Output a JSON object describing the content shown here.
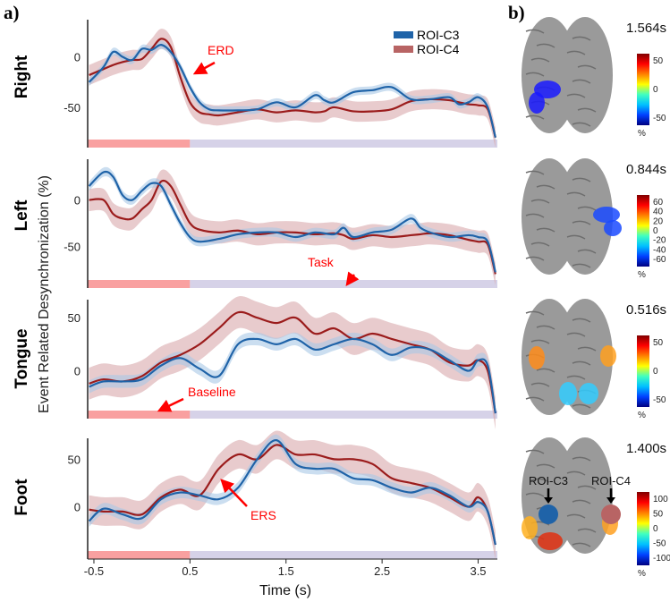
{
  "panel_labels": {
    "a": "a)",
    "b": "b)"
  },
  "ylabel": "Event Related Desynchronization (%)",
  "xlabel": "Time (s)",
  "legend": [
    {
      "name": "ROI-C3",
      "color": "#1f63a8"
    },
    {
      "name": "ROI-C4",
      "color": "#b86464"
    }
  ],
  "annotations": {
    "erd": "ERD",
    "task": "Task",
    "baseline": "Baseline",
    "ers": "ERS"
  },
  "chart_data": {
    "type": "line",
    "xlabel": "Time (s)",
    "ylabel": "Event Related Desynchronization (%)",
    "xticks": [
      "-0.5",
      "0.5",
      "1.5",
      "2.5",
      "3.5"
    ],
    "xlim": [
      -0.565,
      3.7
    ],
    "baseline_interval": [
      -0.565,
      0.5
    ],
    "task_interval": [
      0.5,
      3.7
    ],
    "colors": {
      "c3": "#1f63a8",
      "c4": "#9b1c1c",
      "c3_band": "#a9c8e6",
      "c4_band": "#d9a9ab",
      "baseline": "#f9a0a0",
      "task": "#d6d2e8"
    },
    "panels": [
      {
        "name": "Right",
        "ylim": [
          -90,
          37
        ],
        "yticks": [
          "0",
          "-50"
        ],
        "ytick_values": [
          0,
          -50
        ],
        "x": [
          -0.55,
          -0.4,
          -0.3,
          -0.2,
          -0.1,
          0,
          0.1,
          0.2,
          0.3,
          0.4,
          0.5,
          0.6,
          0.7,
          0.8,
          1.0,
          1.2,
          1.4,
          1.6,
          1.8,
          1.9,
          2.0,
          2.2,
          2.4,
          2.6,
          2.8,
          3.0,
          3.2,
          3.3,
          3.4,
          3.5,
          3.6,
          3.68
        ],
        "series": [
          {
            "name": "ROI-C3",
            "ci": 4,
            "values": [
              -25,
              -10,
              5,
              0,
              -3,
              8,
              7,
              12,
              5,
              -10,
              -30,
              -45,
              -52,
              -53,
              -53,
              -52,
              -45,
              -50,
              -38,
              -43,
              -45,
              -35,
              -33,
              -30,
              -42,
              -42,
              -40,
              -47,
              -45,
              -40,
              -50,
              -80
            ]
          },
          {
            "name": "ROI-C4",
            "ci": 10,
            "values": [
              -18,
              -12,
              -8,
              -5,
              -3,
              -2,
              8,
              18,
              10,
              -20,
              -45,
              -55,
              -57,
              -58,
              -55,
              -52,
              -55,
              -53,
              -55,
              -54,
              -50,
              -54,
              -54,
              -52,
              -44,
              -42,
              -43,
              -45,
              -47,
              -48,
              -52,
              -80
            ]
          }
        ]
      },
      {
        "name": "Left",
        "ylim": [
          -95,
          44
        ],
        "yticks": [
          "0",
          "-50"
        ],
        "ytick_values": [
          0,
          -50
        ],
        "x": [
          -0.55,
          -0.4,
          -0.3,
          -0.2,
          -0.1,
          0,
          0.1,
          0.2,
          0.3,
          0.4,
          0.5,
          0.6,
          0.8,
          1.0,
          1.2,
          1.4,
          1.6,
          1.8,
          2.0,
          2.1,
          2.2,
          2.4,
          2.6,
          2.8,
          2.9,
          3.0,
          3.2,
          3.4,
          3.5,
          3.6,
          3.68
        ],
        "series": [
          {
            "name": "ROI-C3",
            "ci": 5,
            "values": [
              15,
              30,
              25,
              5,
              0,
              10,
              18,
              15,
              -5,
              -25,
              -40,
              -45,
              -42,
              -37,
              -35,
              -35,
              -40,
              -35,
              -37,
              -30,
              -40,
              -35,
              -32,
              -20,
              -30,
              -35,
              -40,
              -38,
              -40,
              -45,
              -78
            ]
          },
          {
            "name": "ROI-C4",
            "ci": 12,
            "values": [
              0,
              0,
              -15,
              -20,
              -20,
              -10,
              0,
              20,
              15,
              -5,
              -25,
              -32,
              -35,
              -33,
              -37,
              -35,
              -35,
              -37,
              -36,
              -38,
              -42,
              -38,
              -40,
              -38,
              -37,
              -36,
              -38,
              -43,
              -45,
              -48,
              -80
            ]
          }
        ]
      },
      {
        "name": "Tongue",
        "ylim": [
          -45,
          67
        ],
        "yticks": [
          "50",
          "0"
        ],
        "ytick_values": [
          50,
          0
        ],
        "x": [
          -0.55,
          -0.4,
          -0.2,
          0,
          0.2,
          0.4,
          0.6,
          0.8,
          1.0,
          1.2,
          1.4,
          1.6,
          1.8,
          2.0,
          2.2,
          2.4,
          2.6,
          2.8,
          3.0,
          3.2,
          3.4,
          3.5,
          3.6,
          3.68
        ],
        "series": [
          {
            "name": "ROI-C3",
            "ci": 6,
            "values": [
              -15,
              -10,
              -10,
              -8,
              5,
              12,
              2,
              -5,
              25,
              30,
              25,
              30,
              20,
              25,
              30,
              25,
              15,
              22,
              20,
              10,
              0,
              10,
              5,
              -40
            ]
          },
          {
            "name": "ROI-C4",
            "ci": 15,
            "values": [
              -12,
              -8,
              -10,
              -5,
              8,
              15,
              25,
              40,
              55,
              50,
              45,
              50,
              35,
              40,
              30,
              35,
              30,
              25,
              20,
              8,
              5,
              10,
              0,
              -40
            ]
          }
        ]
      },
      {
        "name": "Foot",
        "ylim": [
          -55,
          72
        ],
        "yticks": [
          "50",
          "0"
        ],
        "ytick_values": [
          50,
          0
        ],
        "x": [
          -0.55,
          -0.4,
          -0.2,
          0,
          0.2,
          0.4,
          0.6,
          0.8,
          1.0,
          1.2,
          1.4,
          1.6,
          1.8,
          2.0,
          2.2,
          2.4,
          2.6,
          2.8,
          3.0,
          3.2,
          3.4,
          3.5,
          3.6,
          3.68
        ],
        "series": [
          {
            "name": "ROI-C3",
            "ci": 6,
            "values": [
              -15,
              -2,
              -8,
              -12,
              8,
              15,
              12,
              8,
              20,
              50,
              70,
              45,
              40,
              40,
              30,
              28,
              20,
              15,
              20,
              12,
              0,
              5,
              -5,
              -40
            ]
          },
          {
            "name": "ROI-C4",
            "ci": 15,
            "values": [
              -3,
              -5,
              -5,
              -8,
              10,
              18,
              12,
              40,
              55,
              50,
              65,
              55,
              55,
              50,
              50,
              45,
              30,
              25,
              20,
              10,
              0,
              10,
              -5,
              -40
            ]
          }
        ]
      }
    ]
  },
  "brains": [
    {
      "time": "1.564s",
      "ticks": [
        "50",
        "0",
        "-50"
      ],
      "unit": "%"
    },
    {
      "time": "0.844s",
      "ticks": [
        "60",
        "40",
        "20",
        "0",
        "-20",
        "-40",
        "-60"
      ],
      "unit": "%"
    },
    {
      "time": "0.516s",
      "ticks": [
        "50",
        "0",
        "-50"
      ],
      "unit": "%"
    },
    {
      "time": "1.400s",
      "ticks": [
        "100",
        "50",
        "0",
        "-50",
        "-100"
      ],
      "unit": "%",
      "roi_labels": [
        "ROI-C3",
        "ROI-C4"
      ]
    }
  ]
}
